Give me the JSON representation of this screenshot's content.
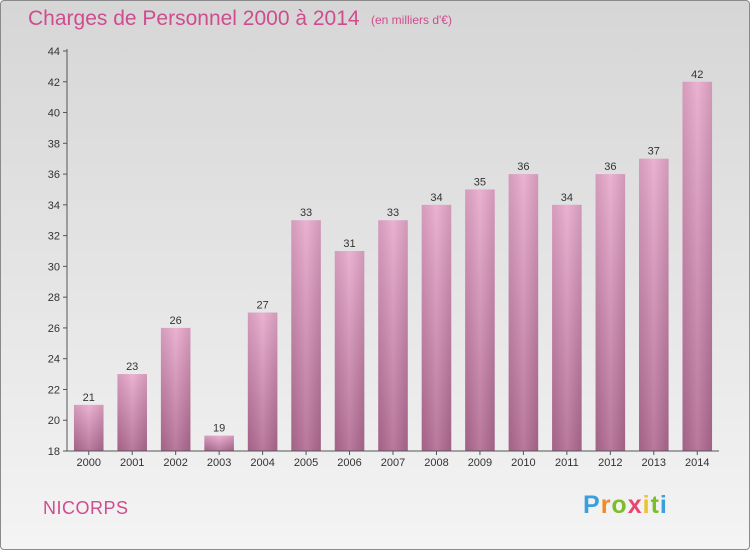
{
  "title": "Charges de Personnel 2000 à 2014",
  "subtitle": "(en milliers d'€)",
  "commune": "NICORPS",
  "logo": {
    "letters": [
      "P",
      "r",
      "o",
      "x",
      "i",
      "t",
      "i"
    ],
    "colors": [
      "#3aa0dd",
      "#f08a24",
      "#7cbd2a",
      "#e8466e",
      "#f0c22a",
      "#7cbd2a",
      "#3aa0dd"
    ]
  },
  "colors": {
    "bar": "#d98fba",
    "bar_dark": "#b86b96",
    "text": "#cf4c8e"
  },
  "chart_data": {
    "type": "bar",
    "categories": [
      "2000",
      "2001",
      "2002",
      "2003",
      "2004",
      "2005",
      "2006",
      "2007",
      "2008",
      "2009",
      "2010",
      "2011",
      "2012",
      "2013",
      "2014"
    ],
    "values": [
      21,
      23,
      26,
      19,
      27,
      33,
      31,
      33,
      34,
      35,
      36,
      34,
      36,
      37,
      42
    ],
    "ylim": [
      18,
      44
    ],
    "yticks": [
      18,
      20,
      22,
      24,
      26,
      28,
      30,
      32,
      34,
      36,
      38,
      40,
      42,
      44
    ],
    "grid": false,
    "title": "Charges de Personnel 2000 à 2014",
    "xlabel": "",
    "ylabel": ""
  }
}
